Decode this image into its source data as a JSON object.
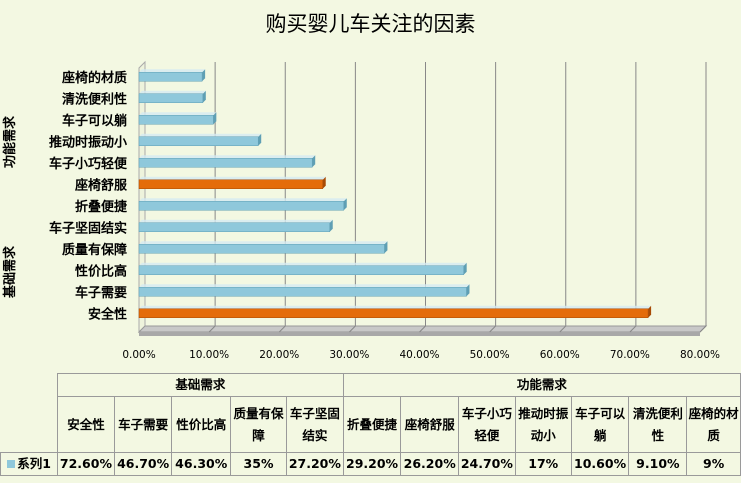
{
  "chart_data": {
    "type": "bar",
    "orientation": "horizontal",
    "title": "购买婴儿车关注的因素",
    "categories": [
      "安全性",
      "车子需要",
      "性价比高",
      "质量有保障",
      "车子坚固结实",
      "折叠便捷",
      "座椅舒服",
      "车子小巧轻便",
      "推动时振动小",
      "车子可以躺",
      "清洗便利性",
      "座椅的材质"
    ],
    "category_groups": [
      {
        "name": "基础需求",
        "categories": [
          "安全性",
          "车子需要",
          "性价比高",
          "质量有保障",
          "车子坚固结实"
        ]
      },
      {
        "name": "功能需求",
        "categories": [
          "折叠便捷",
          "座椅舒服",
          "车子小巧轻便",
          "推动时振动小",
          "车子可以躺",
          "清洗便利性",
          "座椅的材质"
        ]
      }
    ],
    "series": [
      {
        "name": "系列1",
        "values": [
          72.6,
          46.7,
          46.3,
          35,
          27.2,
          29.2,
          26.2,
          24.7,
          17,
          10.6,
          9.1,
          9
        ]
      }
    ],
    "highlighted": [
      "安全性",
      "座椅舒服"
    ],
    "xlim": [
      0,
      80
    ],
    "xticks": [
      "0.00%",
      "10.00%",
      "20.00%",
      "30.00%",
      "40.00%",
      "50.00%",
      "60.00%",
      "70.00%",
      "80.00%"
    ],
    "grid": true,
    "colors": {
      "bar": "#8fc8db",
      "highlight": "#e46c0a",
      "background": "#f3f8e2"
    }
  },
  "table": {
    "groups": [
      "基础需求",
      "功能需求"
    ],
    "headers": [
      "安全性",
      "车子需要",
      "性价比高",
      "质量有保障",
      "车子坚固结实",
      "折叠便捷",
      "座椅舒服",
      "车子小巧轻便",
      "推动时振动小",
      "车子可以躺",
      "清洗便利性",
      "座椅的材质"
    ],
    "series_label": "系列1",
    "values": [
      "72.60%",
      "46.70%",
      "46.30%",
      "35%",
      "27.20%",
      "29.20%",
      "26.20%",
      "24.70%",
      "17%",
      "10.60%",
      "9.10%",
      "9%"
    ]
  }
}
